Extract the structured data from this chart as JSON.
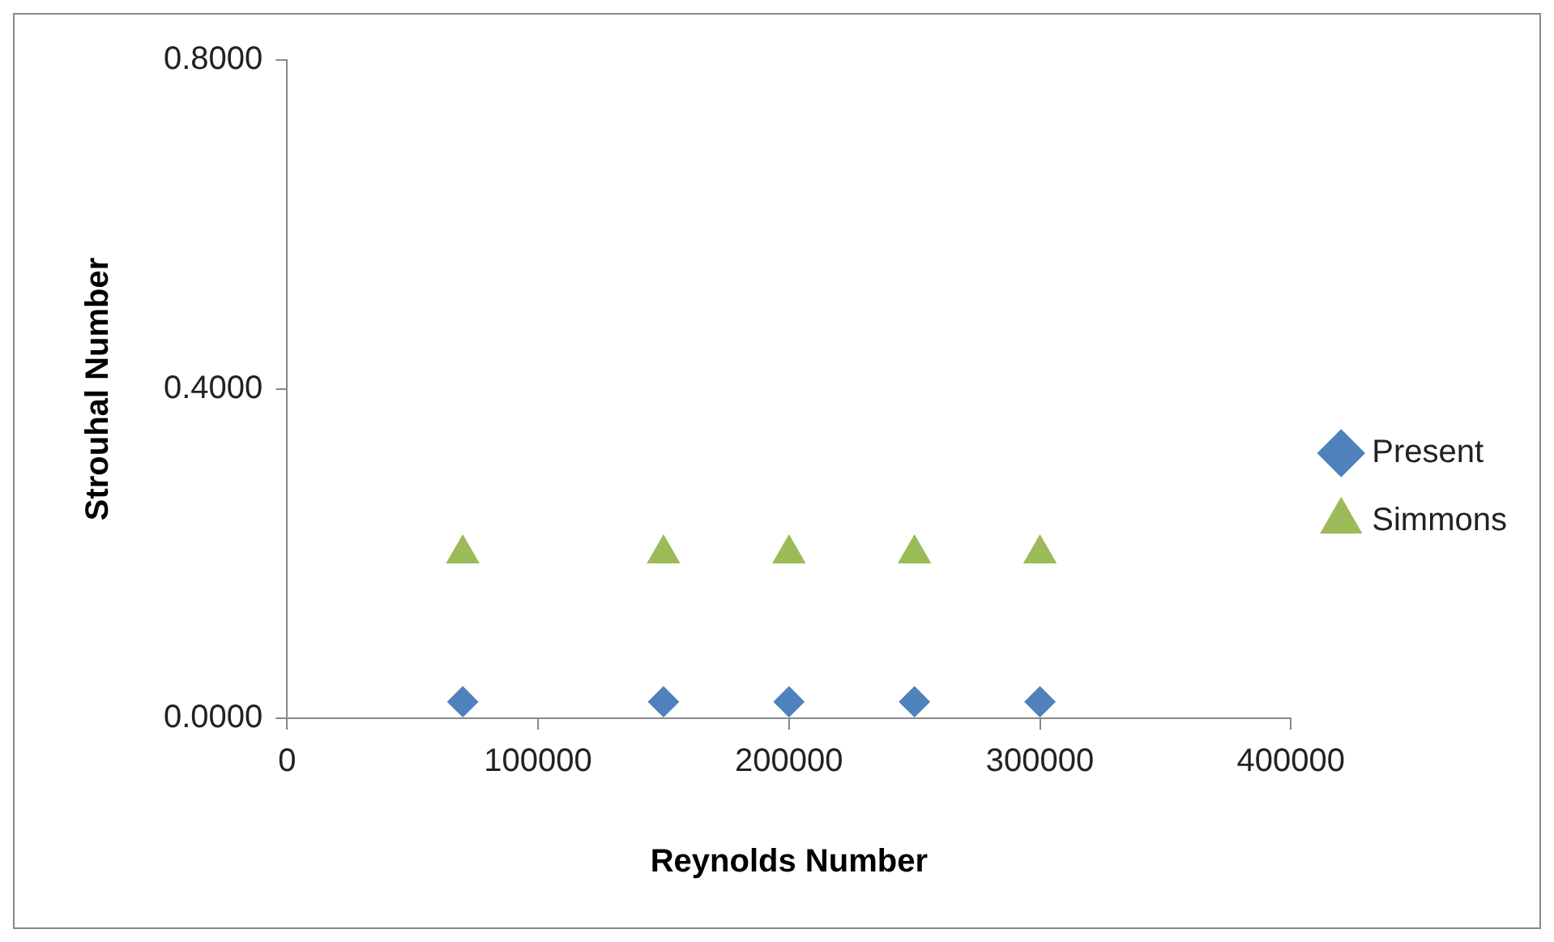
{
  "chart_data": {
    "type": "scatter",
    "xlabel": "Reynolds Number",
    "ylabel": "Strouhal Number",
    "xlim": [
      0,
      400000
    ],
    "xticks": [
      0,
      100000,
      200000,
      300000,
      400000
    ],
    "ylim": [
      0,
      0.8
    ],
    "yticks": [
      {
        "value": 0,
        "label": "0.0000"
      },
      {
        "value": 0.4,
        "label": "0.4000"
      },
      {
        "value": 0.8,
        "label": "0.8000"
      }
    ],
    "x": [
      70000,
      150000,
      200000,
      250000,
      300000
    ],
    "series": [
      {
        "name": "Present",
        "color": "#4f81bd",
        "marker": "diamond",
        "values": [
          0.02,
          0.02,
          0.02,
          0.02,
          0.02
        ]
      },
      {
        "name": "Simmons",
        "color": "#9bbb59",
        "marker": "triangle",
        "values": [
          0.2,
          0.2,
          0.2,
          0.2,
          0.2
        ]
      }
    ],
    "grid": false,
    "legend": "right"
  }
}
